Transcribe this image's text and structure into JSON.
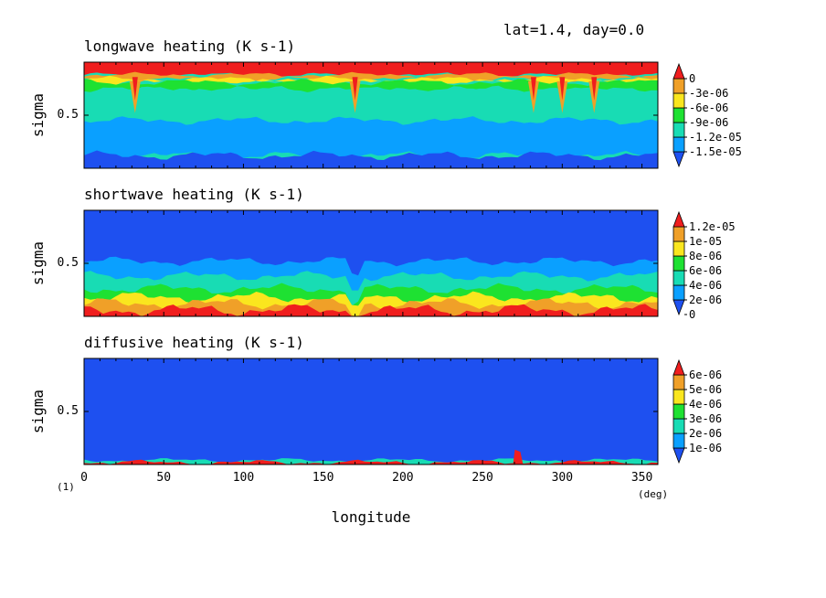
{
  "header": "lat=1.4, day=0.0",
  "x_axis": {
    "label": "longitude",
    "unit": "(deg)",
    "ticks": [
      0,
      50,
      100,
      150,
      200,
      250,
      300,
      350
    ],
    "range": [
      0,
      360
    ]
  },
  "y_axis": {
    "label": "sigma",
    "ticks": [
      "0.5"
    ],
    "range": [
      1.0,
      0.0
    ]
  },
  "corner_label": "(1)",
  "colors": {
    "blue": "#1e50f0",
    "lightblue": "#0aa0ff",
    "cyan": "#18dcb4",
    "green": "#1ee132",
    "yellow": "#fae61e",
    "orange": "#f0a028",
    "red": "#f01e1e"
  },
  "chart_data": [
    {
      "type": "heatmap",
      "title": "longwave heating (K s-1)",
      "colorbar_labels": [
        "0",
        "-3e-06",
        "-6e-06",
        "-9e-06",
        "-1.2e-05",
        "-1.5e-05"
      ],
      "colorbar_levels": [
        0,
        -3e-06,
        -6e-06,
        -9e-06,
        -1.2e-05,
        -1.5e-05
      ],
      "colorbar_colors": [
        "#f01e1e",
        "#f0a028",
        "#fae61e",
        "#1ee132",
        "#18dcb4",
        "#0aa0ff",
        "#1e50f0"
      ],
      "background_color": "#18dcb4",
      "layers": [
        {
          "color": "#f01e1e",
          "sigma": [
            0.0,
            0.12
          ],
          "note": "top band"
        },
        {
          "color": "#f0a028",
          "sigma": [
            0.12,
            0.16
          ]
        },
        {
          "color": "#fae61e",
          "sigma": [
            0.16,
            0.19
          ]
        },
        {
          "color": "#1ee132",
          "sigma": [
            0.19,
            0.26
          ]
        },
        {
          "color": "#18dcb4",
          "sigma": [
            0.26,
            0.55
          ]
        },
        {
          "color": "#0aa0ff",
          "sigma": [
            0.55,
            0.88
          ]
        },
        {
          "color": "#1e50f0",
          "sigma": [
            0.88,
            1.0
          ]
        }
      ],
      "spikes_longitude": [
        32,
        170,
        282,
        300,
        320
      ]
    },
    {
      "type": "heatmap",
      "title": "shortwave heating (K s-1)",
      "colorbar_labels": [
        "1.2e-05",
        "1e-05",
        "8e-06",
        "6e-06",
        "4e-06",
        "2e-06",
        "0"
      ],
      "colorbar_levels": [
        1.2e-05,
        1e-05,
        8e-06,
        6e-06,
        4e-06,
        2e-06,
        0
      ],
      "colorbar_colors": [
        "#f01e1e",
        "#f0a028",
        "#fae61e",
        "#1ee132",
        "#18dcb4",
        "#0aa0ff",
        "#1e50f0"
      ],
      "background_color": "#1e50f0",
      "layers": [
        {
          "color": "#0aa0ff",
          "sigma": [
            0.48,
            1.0
          ]
        },
        {
          "color": "#18dcb4",
          "sigma": [
            0.62,
            1.0
          ]
        },
        {
          "color": "#1ee132",
          "sigma": [
            0.74,
            1.0
          ]
        },
        {
          "color": "#fae61e",
          "sigma": [
            0.82,
            1.0
          ]
        },
        {
          "color": "#f0a028",
          "sigma": [
            0.88,
            1.0
          ]
        },
        {
          "color": "#f01e1e",
          "sigma": [
            0.94,
            1.0
          ]
        }
      ],
      "dip_longitude": [
        165,
        175
      ]
    },
    {
      "type": "heatmap",
      "title": "diffusive heating (K s-1)",
      "colorbar_labels": [
        "6e-06",
        "5e-06",
        "4e-06",
        "3e-06",
        "2e-06",
        "1e-06"
      ],
      "colorbar_levels": [
        6e-06,
        5e-06,
        4e-06,
        3e-06,
        2e-06,
        1e-06
      ],
      "colorbar_colors": [
        "#f01e1e",
        "#f0a028",
        "#fae61e",
        "#1ee132",
        "#18dcb4",
        "#0aa0ff",
        "#1e50f0"
      ],
      "background_color": "#1e50f0",
      "layers": [
        {
          "color": "#18dcb4",
          "sigma": [
            0.96,
            1.0
          ]
        },
        {
          "color": "#f01e1e",
          "sigma": [
            0.98,
            1.0
          ]
        }
      ],
      "spike_longitude": 272
    }
  ]
}
